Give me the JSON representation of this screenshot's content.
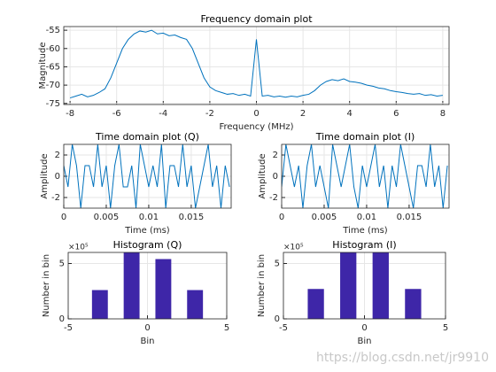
{
  "chart_data": [
    {
      "type": "line",
      "title": "Frequency domain plot",
      "xlabel": "Frequency (MHz)",
      "ylabel": "Magnitude",
      "color": "#0072bd",
      "grid": true,
      "xlim": [
        -8.27,
        8.27
      ],
      "ylim": [
        -75.3,
        -54
      ],
      "xticks": [
        -8,
        -6,
        -4,
        -2,
        0,
        2,
        4,
        6,
        8
      ],
      "yticks": [
        -75,
        -70,
        -65,
        -60,
        -55
      ],
      "x": [
        -8,
        -7.75,
        -7.5,
        -7.25,
        -7,
        -6.75,
        -6.5,
        -6.25,
        -6,
        -5.75,
        -5.5,
        -5.25,
        -5,
        -4.75,
        -4.5,
        -4.25,
        -4,
        -3.75,
        -3.5,
        -3.25,
        -3,
        -2.75,
        -2.5,
        -2.25,
        -2,
        -1.75,
        -1.5,
        -1.25,
        -1,
        -0.75,
        -0.5,
        -0.25,
        0,
        0.25,
        0.5,
        0.75,
        1,
        1.25,
        1.5,
        1.75,
        2,
        2.25,
        2.5,
        2.75,
        3,
        3.25,
        3.5,
        3.75,
        4,
        4.25,
        4.5,
        4.75,
        5,
        5.25,
        5.5,
        5.75,
        6,
        6.25,
        6.5,
        6.75,
        7,
        7.25,
        7.5,
        7.75,
        8
      ],
      "values": [
        -73.5,
        -73,
        -72.5,
        -73.2,
        -72.8,
        -72,
        -71,
        -68,
        -64,
        -60,
        -57.5,
        -56,
        -55.2,
        -55.5,
        -55,
        -56,
        -55.8,
        -56.5,
        -56.3,
        -57,
        -57.5,
        -60,
        -64,
        -68,
        -70.5,
        -71.5,
        -72,
        -72.5,
        -72.3,
        -72.8,
        -72.5,
        -73,
        -57.5,
        -73,
        -72.8,
        -73.2,
        -73,
        -73.3,
        -73,
        -73.2,
        -72.8,
        -72.5,
        -71.5,
        -70,
        -69,
        -68.5,
        -68.8,
        -68.3,
        -69,
        -69.2,
        -69.5,
        -70,
        -70.3,
        -70.8,
        -71,
        -71.5,
        -71.8,
        -72,
        -72.3,
        -72.5,
        -72.3,
        -72.8,
        -72.6,
        -73,
        -72.8
      ]
    },
    {
      "type": "line",
      "title": "Time domain plot (Q)",
      "xlabel": "Time (ms)",
      "ylabel": "Amplitude",
      "color": "#0072bd",
      "grid": true,
      "xlim": [
        0,
        0.0197
      ],
      "ylim": [
        -3,
        3
      ],
      "xticks": [
        0,
        0.005,
        0.01,
        0.015
      ],
      "yticks": [
        -2,
        0,
        2
      ],
      "x": [
        0,
        0.0005,
        0.001,
        0.0015,
        0.002,
        0.0025,
        0.003,
        0.0035,
        0.004,
        0.0045,
        0.005,
        0.0055,
        0.006,
        0.0065,
        0.007,
        0.0075,
        0.008,
        0.0085,
        0.009,
        0.0095,
        0.01,
        0.0105,
        0.011,
        0.0115,
        0.012,
        0.0125,
        0.013,
        0.0135,
        0.014,
        0.0145,
        0.015,
        0.0155,
        0.016,
        0.0165,
        0.017,
        0.0175,
        0.018,
        0.0185,
        0.019,
        0.0195
      ],
      "values": [
        1,
        -1,
        3,
        1,
        -3,
        1,
        1,
        -1,
        3,
        -1,
        1,
        -3,
        1,
        3,
        -1,
        -1,
        1,
        -3,
        3,
        1,
        -1,
        1,
        -1,
        3,
        -3,
        1,
        1,
        -1,
        3,
        -1,
        1,
        -3,
        -1,
        1,
        3,
        -1,
        1,
        -3,
        1,
        -1
      ]
    },
    {
      "type": "line",
      "title": "Time domain plot (I)",
      "xlabel": "Time (ms)",
      "ylabel": "Amplitude",
      "color": "#0072bd",
      "grid": true,
      "xlim": [
        0,
        0.0197
      ],
      "ylim": [
        -3,
        3
      ],
      "xticks": [
        0,
        0.005,
        0.01,
        0.015
      ],
      "yticks": [
        -2,
        0,
        2
      ],
      "x": [
        0,
        0.0005,
        0.001,
        0.0015,
        0.002,
        0.0025,
        0.003,
        0.0035,
        0.004,
        0.0045,
        0.005,
        0.0055,
        0.006,
        0.0065,
        0.007,
        0.0075,
        0.008,
        0.0085,
        0.009,
        0.0095,
        0.01,
        0.0105,
        0.011,
        0.0115,
        0.012,
        0.0125,
        0.013,
        0.0135,
        0.014,
        0.0145,
        0.015,
        0.0155,
        0.016,
        0.0165,
        0.017,
        0.0175,
        0.018,
        0.0185,
        0.019,
        0.0195
      ],
      "values": [
        -1,
        3,
        1,
        -1,
        1,
        -3,
        1,
        3,
        -1,
        1,
        -1,
        -3,
        3,
        1,
        -1,
        1,
        3,
        -1,
        -3,
        1,
        -1,
        1,
        3,
        -1,
        1,
        -3,
        1,
        -1,
        3,
        1,
        -1,
        -3,
        1,
        1,
        -1,
        3,
        -1,
        1,
        -3,
        1
      ]
    },
    {
      "type": "bar",
      "title": "Histogram (Q)",
      "xlabel": "Bin",
      "ylabel": "Number in bin",
      "color": "#3e26a8",
      "grid": true,
      "xlim": [
        -5,
        5
      ],
      "ylim": [
        0,
        600000
      ],
      "xticks": [
        -5,
        0,
        5
      ],
      "yticks": [
        0,
        {
          "value": 500000,
          "label": "5"
        }
      ],
      "y_exponent": "×10⁵",
      "x": [
        -3,
        -1,
        1,
        3
      ],
      "values": [
        260000,
        600000,
        540000,
        260000
      ]
    },
    {
      "type": "bar",
      "title": "Histogram (I)",
      "xlabel": "Bin",
      "ylabel": "Number in bin",
      "color": "#3e26a8",
      "grid": true,
      "xlim": [
        -5,
        5
      ],
      "ylim": [
        0,
        600000
      ],
      "xticks": [
        -5,
        0,
        5
      ],
      "yticks": [
        0,
        {
          "value": 500000,
          "label": "5"
        }
      ],
      "y_exponent": "×10⁵",
      "x": [
        -3,
        -1,
        1,
        3
      ],
      "values": [
        270000,
        600000,
        600000,
        270000
      ]
    }
  ],
  "watermark": "https://blog.csdn.net/jr9910"
}
